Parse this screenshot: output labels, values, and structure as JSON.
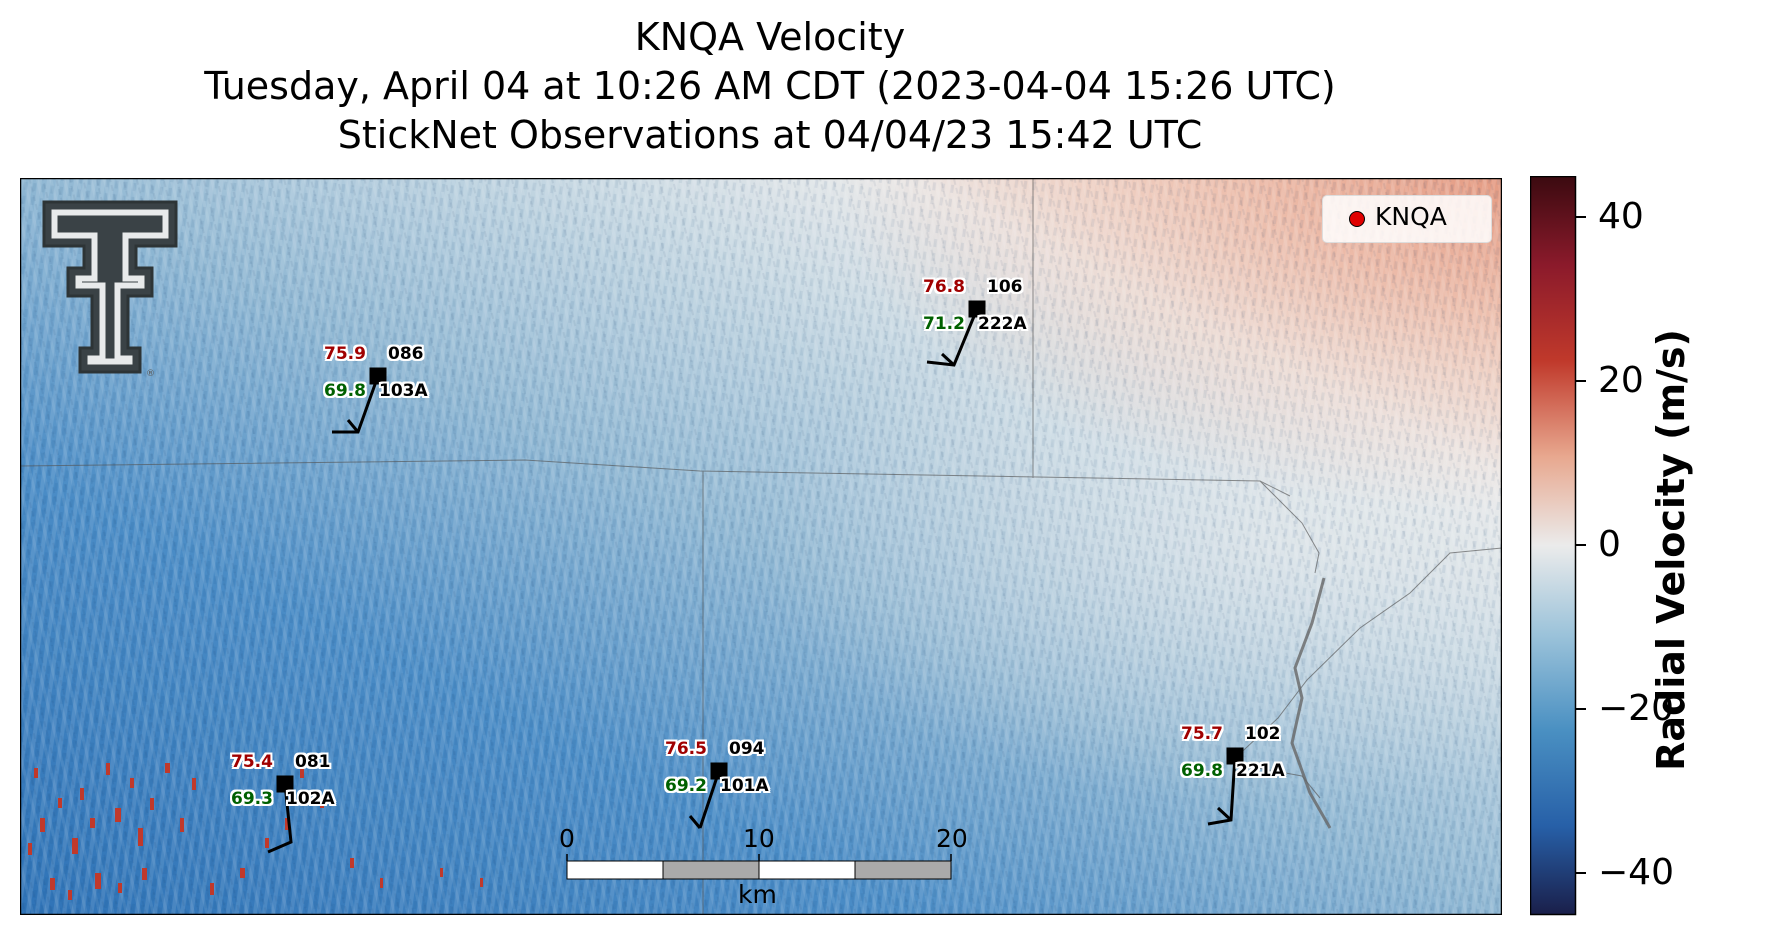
{
  "title": {
    "line1": "KNQA Velocity",
    "line2": "Tuesday, April 04 at 10:26 AM CDT (2023-04-04 15:26 UTC)",
    "line3": "StickNet Observations at 04/04/23 15:42 UTC"
  },
  "legend": {
    "label": "KNQA",
    "marker_color": "#e00000"
  },
  "colorbar": {
    "label": "Radial Velocity (m/s)",
    "ticks": [
      "40",
      "20",
      "0",
      "−20",
      "−40"
    ],
    "range": [
      -45,
      45
    ],
    "colormap": [
      "#1a1a40",
      "#2166ac",
      "#4393c3",
      "#92c5de",
      "#e8e8e8",
      "#f4a582",
      "#d6604d",
      "#b2182b",
      "#3b0a10"
    ]
  },
  "scale_bar": {
    "ticks": [
      "0",
      "10",
      "20"
    ],
    "unit": "km"
  },
  "logo": {
    "name": "Texas Tech double-T logo"
  },
  "stations": [
    {
      "temp": "75.9",
      "pressure": "086",
      "dew": "69.8",
      "id": "103A"
    },
    {
      "temp": "76.8",
      "pressure": "106",
      "dew": "71.2",
      "id": "222A"
    },
    {
      "temp": "75.4",
      "pressure": "081",
      "dew": "69.3",
      "id": "102A"
    },
    {
      "temp": "76.5",
      "pressure": "094",
      "dew": "69.2",
      "id": "101A"
    },
    {
      "temp": "75.7",
      "pressure": "102",
      "dew": "69.8",
      "id": "221A"
    }
  ]
}
